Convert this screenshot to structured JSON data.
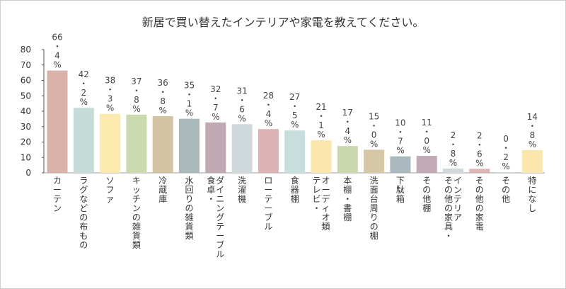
{
  "chart_data": {
    "type": "bar",
    "title": "新居で買い替えたインテリアや家電を教えてください。",
    "xlabel": "",
    "ylabel": "",
    "ylim": [
      0,
      80
    ],
    "yticks": [
      "0",
      "10",
      "20",
      "30",
      "40",
      "50",
      "60",
      "70",
      "80"
    ],
    "grid": false,
    "categories": [
      "カーテン",
      "ラグなどの布もの",
      "ソファ",
      "キッチンの雑貨類",
      "冷蔵庫",
      "水回りの雑貨類",
      "食卓・\nダイニングテーブル",
      "洗濯機",
      "ローテーブル",
      "食器棚",
      "テレビ・\nオーディオ類",
      "本棚・書棚",
      "洗面台周りの棚",
      "下駄箱",
      "その他棚",
      "その他の家具・\nインテリア",
      "その他の家電",
      "その他",
      "特になし"
    ],
    "values": [
      66.4,
      42.2,
      38.3,
      37.8,
      36.8,
      35.1,
      32.7,
      31.6,
      28.4,
      27.5,
      21.1,
      17.4,
      15.0,
      10.7,
      11.0,
      2.8,
      2.6,
      0.2,
      14.8
    ],
    "value_labels": [
      "66・4%",
      "42・2%",
      "38・3%",
      "37・8%",
      "36・8%",
      "35・1%",
      "32・7%",
      "31・6%",
      "28・4%",
      "27・5%",
      "21・1%",
      "17・4%",
      "15・0%",
      "10・7%",
      "11・0%",
      "2・8%",
      "2・6%",
      "0・2%",
      "14・8%"
    ],
    "colors": [
      "#d9b3a9",
      "#c5dbd7",
      "#fbe9ad",
      "#cbd9ae",
      "#d3c3a2",
      "#a9b8bb",
      "#c1a9b3",
      "#cfd9dc",
      "#dcb3b4",
      "#c6dfdc",
      "#fbe7ad",
      "#cbd8ae",
      "#d6c7a5",
      "#a9b8bc",
      "#c3a8b5",
      "#cfd9dc",
      "#dcb4b3",
      "#c8dfdc",
      "#fbe7ad"
    ]
  }
}
